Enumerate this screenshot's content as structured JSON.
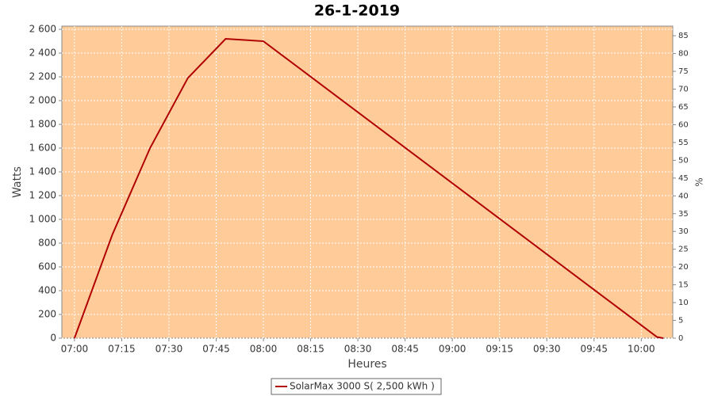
{
  "chart_data": {
    "type": "line",
    "title": "26-1-2019",
    "x_label": "Heures",
    "y_label": "Watts",
    "y2_label": "%",
    "x": [
      "07:00",
      "07:12",
      "07:24",
      "07:36",
      "07:48",
      "07:54",
      "08:00",
      "10:05",
      "10:07"
    ],
    "series": [
      {
        "name": "SolarMax 3000 S( 2,500 kWh )",
        "color": "#b00000",
        "values": [
          0,
          870,
          1600,
          2190,
          2520,
          2510,
          2500,
          10,
          0
        ]
      }
    ],
    "xlim": [
      "06:56",
      "10:10"
    ],
    "xticks": [
      "07:00",
      "07:15",
      "07:30",
      "07:45",
      "08:00",
      "08:15",
      "08:30",
      "08:45",
      "09:00",
      "09:15",
      "09:30",
      "09:45",
      "10:00"
    ],
    "ylim": [
      0,
      2627
    ],
    "yticks": [
      0,
      200,
      400,
      600,
      800,
      {
        "value": 1000,
        "label": "1 000"
      },
      {
        "value": 1200,
        "label": "1 200"
      },
      {
        "value": 1400,
        "label": "1 400"
      },
      {
        "value": 1600,
        "label": "1 600"
      },
      {
        "value": 1800,
        "label": "1 800"
      },
      {
        "value": 2000,
        "label": "2 000"
      },
      {
        "value": 2200,
        "label": "2 200"
      },
      {
        "value": 2400,
        "label": "2 400"
      },
      {
        "value": 2600,
        "label": "2 600"
      }
    ],
    "y2lim": [
      0,
      87.7
    ],
    "y2ticks": [
      0,
      5,
      10,
      15,
      20,
      25,
      30,
      35,
      40,
      45,
      50,
      55,
      60,
      65,
      70,
      75,
      80,
      85
    ],
    "grid": true,
    "background": "#ffcc99",
    "legend": "bottom"
  }
}
